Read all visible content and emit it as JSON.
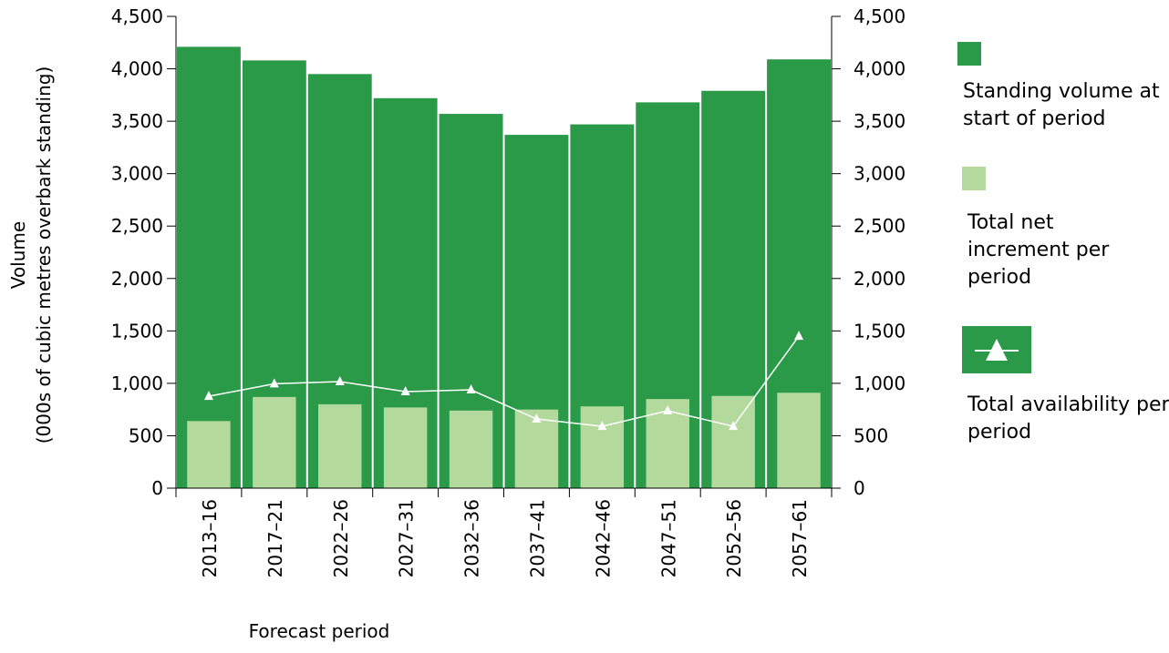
{
  "chart_data": {
    "type": "bar_line",
    "x_label": "Forecast period",
    "y_label": [
      "Volume",
      "(000s of cubic metres overbark standing)"
    ],
    "categories": [
      "2013–16",
      "2017–21",
      "2022–26",
      "2027–31",
      "2032–36",
      "2037–41",
      "2042–46",
      "2047–51",
      "2052–56",
      "2057–61"
    ],
    "series": [
      {
        "name": "Standing volume at start of period",
        "type": "bar",
        "color": "#2a9a48",
        "values": [
          4210,
          4080,
          3950,
          3720,
          3570,
          3370,
          3470,
          3680,
          3790,
          4090
        ]
      },
      {
        "name": "Total net increment per period",
        "type": "bar",
        "color": "#b3d99c",
        "values": [
          640,
          870,
          800,
          770,
          740,
          750,
          780,
          850,
          880,
          910
        ]
      },
      {
        "name": "Total availability per period",
        "type": "line",
        "color": "#ffffff",
        "values": [
          876,
          996,
          1016,
          921,
          938,
          660,
          590,
          738,
          590,
          1450
        ]
      }
    ],
    "ylim": [
      0,
      4500
    ],
    "yticks": [
      0,
      500,
      {
        "value": 1000,
        "label": "1,000"
      },
      {
        "value": 1500,
        "label": "1,500"
      },
      {
        "value": 2000,
        "label": "2,000"
      },
      {
        "value": 2500,
        "label": "2,500"
      },
      {
        "value": 3000,
        "label": "3,000"
      },
      {
        "value": 3500,
        "label": "3,500"
      },
      {
        "value": 4000,
        "label": "4,000"
      },
      {
        "value": 4500,
        "label": "4,500"
      }
    ],
    "y2lim": [
      0,
      4500
    ],
    "y2ticks": [
      0,
      500,
      {
        "value": 1000,
        "label": "1,000"
      },
      {
        "value": 1500,
        "label": "1,500"
      },
      {
        "value": 2000,
        "label": "2,000"
      },
      {
        "value": 2500,
        "label": "2,500"
      },
      {
        "value": 3000,
        "label": "3,000"
      },
      {
        "value": 3500,
        "label": "3,500"
      },
      {
        "value": 4000,
        "label": "4,000"
      },
      {
        "value": 4500,
        "label": "4,500"
      }
    ],
    "grid": false
  }
}
